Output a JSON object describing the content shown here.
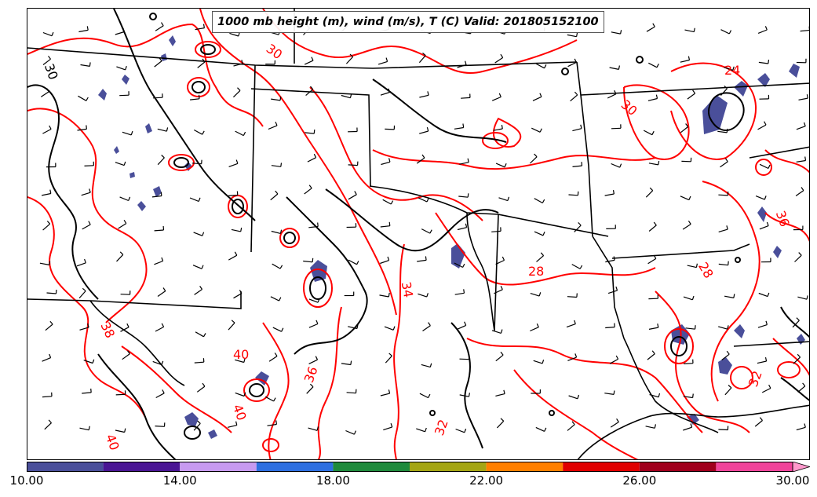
{
  "title": "1000 mb height (m), wind (m/s), T (C) Valid: 201805152100",
  "colorbar": {
    "min": 10,
    "max": 31,
    "extend": "max",
    "bins": [
      {
        "from": 10,
        "to": 12,
        "color": "#4a4f9a"
      },
      {
        "from": 12,
        "to": 14,
        "color": "#4a1694"
      },
      {
        "from": 14,
        "to": 16,
        "color": "#c79af0"
      },
      {
        "from": 16,
        "to": 18,
        "color": "#2e6fe0"
      },
      {
        "from": 18,
        "to": 20,
        "color": "#1f8a3c"
      },
      {
        "from": 20,
        "to": 22,
        "color": "#a4a514"
      },
      {
        "from": 22,
        "to": 24,
        "color": "#ff7f00"
      },
      {
        "from": 24,
        "to": 26,
        "color": "#e00000"
      },
      {
        "from": 26,
        "to": 28,
        "color": "#a0001c"
      },
      {
        "from": 28,
        "to": 30,
        "color": "#f0449a"
      },
      {
        "from": 30,
        "to": 31,
        "color": "#ff99cc"
      }
    ],
    "ticks": [
      "10.00",
      "14.00",
      "18.00",
      "22.00",
      "26.00",
      "30.00"
    ]
  },
  "colors": {
    "temperature_contour": "#ff0000",
    "height_contour": "#000000",
    "wind_barb": "#000000",
    "shading": "#4a4f9a"
  },
  "contour_labels": [
    {
      "text": "30",
      "kind": "height"
    },
    {
      "text": "30",
      "kind": "temperature"
    },
    {
      "text": "24",
      "kind": "temperature"
    },
    {
      "text": "30",
      "kind": "temperature"
    },
    {
      "text": "28",
      "kind": "temperature"
    },
    {
      "text": "34",
      "kind": "temperature"
    },
    {
      "text": "38",
      "kind": "temperature"
    },
    {
      "text": "40",
      "kind": "temperature"
    },
    {
      "text": "36",
      "kind": "temperature"
    },
    {
      "text": "40",
      "kind": "temperature"
    },
    {
      "text": "40",
      "kind": "temperature"
    },
    {
      "text": "32",
      "kind": "temperature"
    },
    {
      "text": "32",
      "kind": "temperature"
    },
    {
      "text": "28",
      "kind": "temperature"
    },
    {
      "text": "36",
      "kind": "temperature"
    }
  ]
}
